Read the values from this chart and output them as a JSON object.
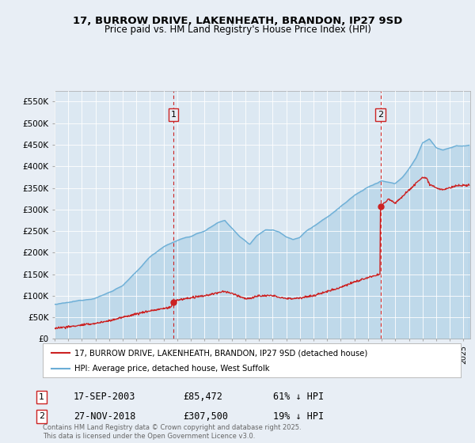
{
  "title_line1": "17, BURROW DRIVE, LAKENHEATH, BRANDON, IP27 9SD",
  "title_line2": "Price paid vs. HM Land Registry's House Price Index (HPI)",
  "ylabel_ticks": [
    "£0",
    "£50K",
    "£100K",
    "£150K",
    "£200K",
    "£250K",
    "£300K",
    "£350K",
    "£400K",
    "£450K",
    "£500K",
    "£550K"
  ],
  "ytick_vals": [
    0,
    50000,
    100000,
    150000,
    200000,
    250000,
    300000,
    350000,
    400000,
    450000,
    500000,
    550000
  ],
  "ylim": [
    0,
    575000
  ],
  "xlim_start": 1995.0,
  "xlim_end": 2025.5,
  "hpi_color": "#6baed6",
  "price_color": "#cc2222",
  "marker1_x": 2003.72,
  "marker1_y": 85472,
  "marker2_x": 2018.92,
  "marker2_y": 307500,
  "legend_line1": "17, BURROW DRIVE, LAKENHEATH, BRANDON, IP27 9SD (detached house)",
  "legend_line2": "HPI: Average price, detached house, West Suffolk",
  "marker1_date": "17-SEP-2003",
  "marker1_price": "£85,472",
  "marker1_note": "61% ↓ HPI",
  "marker2_date": "27-NOV-2018",
  "marker2_price": "£307,500",
  "marker2_note": "19% ↓ HPI",
  "footnote": "Contains HM Land Registry data © Crown copyright and database right 2025.\nThis data is licensed under the Open Government Licence v3.0.",
  "bg_color": "#e8eef5",
  "plot_bg": "#dce8f2"
}
